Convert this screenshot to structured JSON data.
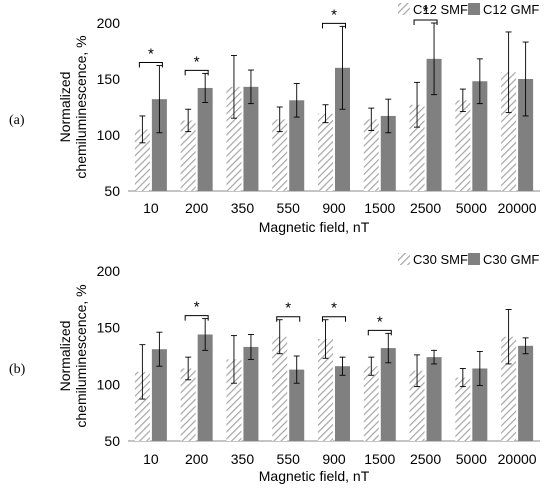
{
  "chart_data": [
    {
      "type": "bar",
      "panel_label": "(a)",
      "categories": [
        "10",
        "200",
        "350",
        "550",
        "900",
        "1500",
        "2500",
        "5000",
        "20000"
      ],
      "xlabel": "Magnetic field, nT",
      "ylabel": [
        "Normalized",
        "chemiluminescence, %"
      ],
      "ylim": [
        50,
        200
      ],
      "yticks": [
        "50",
        "100",
        "150",
        "200"
      ],
      "legend_position": "top-right",
      "series": [
        {
          "name": "C12 SMF",
          "style": "hatched",
          "color": "#c8c8c8",
          "values": [
            105,
            113,
            143,
            114,
            119,
            114,
            127,
            131,
            156
          ],
          "errors": [
            12,
            10,
            28,
            11,
            8,
            10,
            20,
            10,
            36
          ]
        },
        {
          "name": "C12 GMF",
          "style": "solid",
          "color": "#808080",
          "values": [
            132,
            142,
            143,
            131,
            160,
            117,
            168,
            148,
            150
          ],
          "errors": [
            30,
            13,
            15,
            15,
            37,
            15,
            32,
            20,
            33
          ]
        }
      ],
      "significance": [
        {
          "category": "10",
          "label": "*"
        },
        {
          "category": "200",
          "label": "*"
        },
        {
          "category": "900",
          "label": "*"
        },
        {
          "category": "2500",
          "label": "*"
        }
      ]
    },
    {
      "type": "bar",
      "panel_label": "(b)",
      "categories": [
        "10",
        "200",
        "350",
        "550",
        "900",
        "1500",
        "2500",
        "5000",
        "20000"
      ],
      "xlabel": "Magnetic field, nT",
      "ylabel": [
        "Normalized",
        "chemiluminescence, %"
      ],
      "ylim": [
        50,
        200
      ],
      "yticks": [
        "50",
        "100",
        "150",
        "200"
      ],
      "legend_position": "top-right",
      "series": [
        {
          "name": "C30 SMF",
          "style": "hatched",
          "color": "#c8c8c8",
          "values": [
            111,
            114,
            122,
            142,
            140,
            116,
            112,
            106,
            142
          ],
          "errors": [
            24,
            10,
            21,
            15,
            17,
            8,
            14,
            8,
            24
          ]
        },
        {
          "name": "C30 GMF",
          "style": "solid",
          "color": "#808080",
          "values": [
            131,
            144,
            133,
            113,
            116,
            132,
            124,
            114,
            134
          ],
          "errors": [
            15,
            14,
            11,
            12,
            8,
            13,
            6,
            15,
            7
          ]
        }
      ],
      "significance": [
        {
          "category": "200",
          "label": "*"
        },
        {
          "category": "550",
          "label": "*"
        },
        {
          "category": "900",
          "label": "*"
        },
        {
          "category": "1500",
          "label": "*"
        }
      ]
    }
  ]
}
